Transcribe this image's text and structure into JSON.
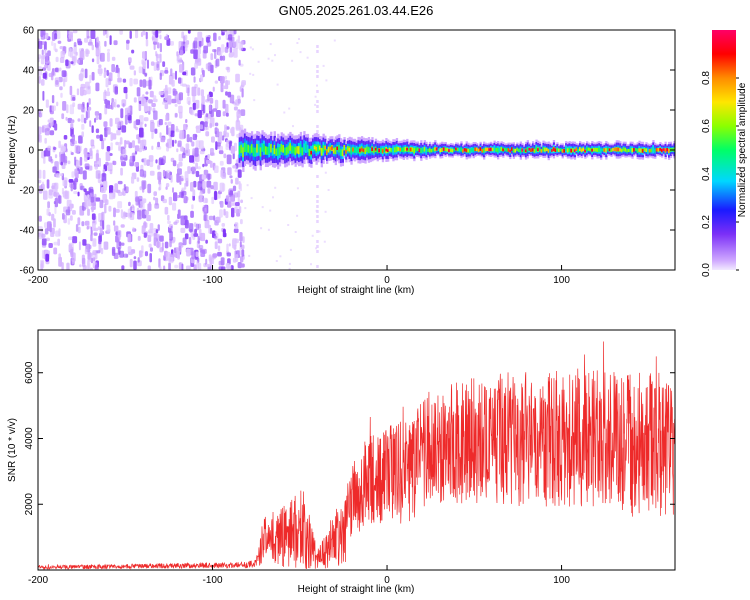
{
  "chart_data": [
    {
      "type": "heatmap",
      "title": "GN05.2025.261.03.44.E26",
      "xlabel": "Height of straight line (km)",
      "ylabel": "Frequency (Hz)",
      "xlim": [
        -200,
        165
      ],
      "ylim": [
        -60,
        60
      ],
      "xticks": [
        -200,
        -100,
        0,
        100
      ],
      "xtick_labels": [
        "-200",
        "-100",
        "0",
        "100"
      ],
      "yticks": [
        -60,
        -40,
        -20,
        0,
        20,
        40,
        60
      ],
      "ytick_labels": [
        "-60",
        "-40",
        "-20",
        "0",
        "20",
        "40",
        "60"
      ],
      "colorbar": {
        "label": "Normalized spectral amplitude",
        "range": [
          0,
          1
        ],
        "ticks": [
          0,
          0.2,
          0.4,
          0.6,
          0.8
        ],
        "tick_labels": [
          "0.0",
          "0.2",
          "0.4",
          "0.6",
          "0.8"
        ],
        "colormap": [
          "#f2eaff",
          "#cfa8ff",
          "#7b2ff7",
          "#1a1aff",
          "#00d7ff",
          "#00ff66",
          "#8cff00",
          "#ffe600",
          "#ff8c00",
          "#ff0000",
          "#ff0066"
        ]
      },
      "regions": {
        "noise_field": {
          "x_range": [
            -200,
            -82
          ],
          "frequency_range": [
            -60,
            60
          ],
          "amplitude_range": [
            0.05,
            0.2
          ]
        },
        "signal_band": {
          "x_range": [
            -85,
            165
          ],
          "center_frequency": 0,
          "half_width_hz": [
            6,
            2
          ],
          "peak_amplitude": 1.0
        },
        "vertical_streak": {
          "x": -40,
          "frequency_range": [
            -60,
            55
          ],
          "amplitude": 0.05
        }
      }
    },
    {
      "type": "line",
      "xlabel": "Height of straight line (km)",
      "ylabel": "SNR (10 * v/v)",
      "xlim": [
        -200,
        165
      ],
      "ylim": [
        0,
        7300
      ],
      "xticks": [
        -200,
        -100,
        0,
        100
      ],
      "xtick_labels": [
        "-200",
        "-100",
        "0",
        "100"
      ],
      "yticks": [
        2000,
        4000,
        6000
      ],
      "ytick_labels": [
        "2000",
        "4000",
        "6000"
      ],
      "color": "#ee2a2a",
      "envelope_x": [
        -200,
        -180,
        -160,
        -140,
        -120,
        -100,
        -90,
        -80,
        -75,
        -70,
        -60,
        -50,
        -45,
        -40,
        -30,
        -25,
        -20,
        -10,
        0,
        10,
        20,
        25,
        40,
        60,
        80,
        100,
        120,
        140,
        160,
        165
      ],
      "envelope_mean": [
        80,
        90,
        100,
        120,
        130,
        140,
        150,
        160,
        200,
        1000,
        1000,
        1300,
        900,
        300,
        900,
        1000,
        2100,
        2800,
        2900,
        3000,
        3400,
        3800,
        3900,
        4000,
        4000,
        3900,
        4000,
        3800,
        3800,
        3900
      ],
      "envelope_spread": [
        60,
        60,
        70,
        70,
        80,
        80,
        90,
        100,
        150,
        700,
        900,
        1300,
        900,
        300,
        900,
        1000,
        1200,
        1400,
        1500,
        1600,
        1700,
        1800,
        1900,
        2000,
        2100,
        2000,
        2100,
        2200,
        2200,
        2200
      ]
    }
  ]
}
